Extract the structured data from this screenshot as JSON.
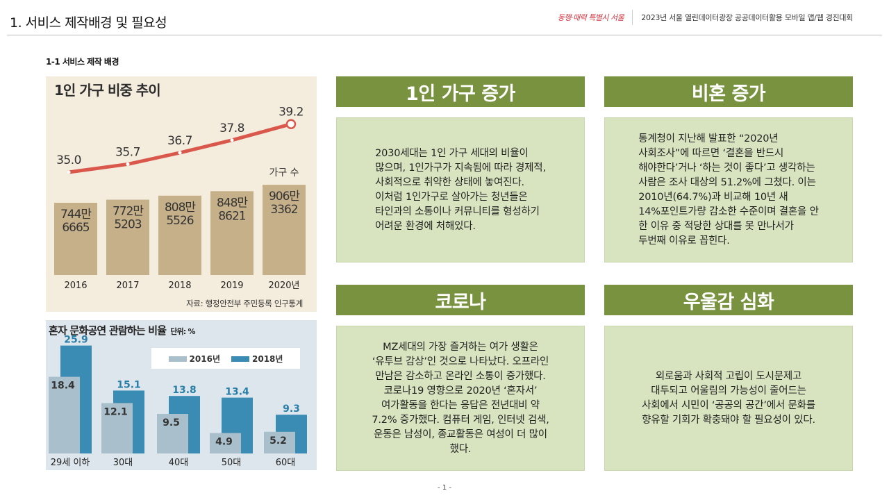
{
  "header": {
    "title": "1. 서비스 제작배경 및 필요성",
    "logo_text": "동행·매력 특별시 서울",
    "contest": "2023년 서울 열린데이터광장 공공데이터활용 모바일 앱/웹 경진대회"
  },
  "subheading": "1-1 서비스 제작 배경",
  "chart_data": [
    {
      "type": "bar",
      "title": "1인 가구 비중 추이",
      "categories": [
        "2016",
        "2017",
        "2018",
        "2019",
        "2020년"
      ],
      "series": [
        {
          "name": "가구 수",
          "values": [
            7446665,
            7725203,
            8085526,
            8488621,
            9063362
          ],
          "labels": [
            [
              "744만",
              "6665"
            ],
            [
              "772만",
              "5203"
            ],
            [
              "808만",
              "5526"
            ],
            [
              "848만",
              "8621"
            ],
            [
              "906만",
              "3362"
            ]
          ]
        },
        {
          "name": "",
          "type": "line",
          "values": [
            35.0,
            35.7,
            36.7,
            37.8,
            39.2
          ],
          "labels": [
            "35.0",
            "35.7",
            "36.7",
            "37.8",
            "39.2"
          ]
        }
      ],
      "series_label": "가구 수",
      "source": "자료: 행정안전부 주민등록 인구통계",
      "colors": {
        "bar": "#c6b08a",
        "line": "#d9574b",
        "background": "#f4ecdd"
      }
    },
    {
      "type": "bar",
      "title": "혼자 문화공연 관람하는 비율",
      "unit": "단위: %",
      "categories": [
        "29세 이하",
        "30대",
        "40대",
        "50대",
        "60대"
      ],
      "series": [
        {
          "name": "2016년",
          "values": [
            18.4,
            12.1,
            9.5,
            4.9,
            5.2
          ],
          "color": "#a9c0cc"
        },
        {
          "name": "2018년",
          "values": [
            25.9,
            15.1,
            13.8,
            13.4,
            9.3
          ],
          "color": "#3a8cb4"
        }
      ],
      "colors": {
        "background": "#dde6ec"
      }
    }
  ],
  "panels": [
    {
      "title": "1인 가구 증가",
      "body": "  2030세대는 1인 가구 세대의 비율이\n많으며, 1인가구가 지속됨에 따라 경제적,\n사회적으로 취약한 상태에 놓여진다.\n이처럼 1인가구로 살아가는 청년들은\n타인과의 소통이나 커뮤니티를 형성하기\n어려운 환경에 처해있다."
    },
    {
      "title": "비혼 증가",
      "body": "  통계청이 지난해 발표한 “2020년\n사회조사”에 따르면 ‘결혼을 반드시\n해야한다’거나 ‘하는 것이 좋다’고 생각하는\n사람은 조사 대상의 51.2%에 그쳤다. 이는\n2010년(64.7%)과  비교해 10년 새\n14%포인트가량 감소한 수준이며 결혼을 안\n한 이유 중 적당한 상대를 못 만나서가\n두번째 이유로 꼽힌다."
    },
    {
      "title": "코로나",
      "body": "MZ세대의 가장 즐겨하는 여가 생활은\n‘유투브 감상’인 것으로 나타났다. 오프라인\n만남은 감소하고 온라인 소통이 증가했다.\n코로나19 영향으로 2020년 ‘혼자서’\n여가활동을 한다는 응답은 전년대비 약\n7.2% 증가했다. 컴퓨터 게임, 인터넷 검색,\n운동은 남성이, 종교활동은 여성이 더 많이\n했다."
    },
    {
      "title": "우울감 심화",
      "body": "외로움과 사회적 고립이 도시문제고\n대두되고 어울림의 가능성이 줄어드는\n사회에서 시민이 ‘공공의 공간’에서 문화를\n향유할 기회가 확충돼야 할 필요성이 있다."
    }
  ],
  "footer": {
    "page": "- 1 -"
  }
}
